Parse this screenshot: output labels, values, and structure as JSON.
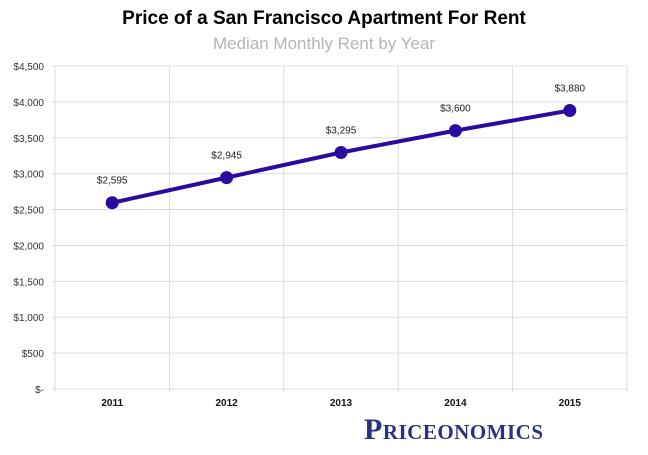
{
  "chart_data": {
    "type": "line",
    "title": "Price of a San Francisco Apartment For Rent",
    "subtitle": "Median Monthly Rent by Year",
    "categories": [
      "2011",
      "2012",
      "2013",
      "2014",
      "2015"
    ],
    "values": [
      2595,
      2945,
      3295,
      3600,
      3880
    ],
    "data_labels": [
      "$2,595",
      "$2,945",
      "$3,295",
      "$3,600",
      "$3,880"
    ],
    "ylim": [
      0,
      4500
    ],
    "yticks": [
      0,
      500,
      1000,
      1500,
      2000,
      2500,
      3000,
      3500,
      4000,
      4500
    ],
    "ytick_labels": [
      "$-",
      "$500",
      "$1,000",
      "$1,500",
      "$2,000",
      "$2,500",
      "$3,000",
      "$3,500",
      "$4,000",
      "$4,500"
    ],
    "grid": true,
    "line_color": "#2a0aa0"
  },
  "logo": "Priceonomics"
}
